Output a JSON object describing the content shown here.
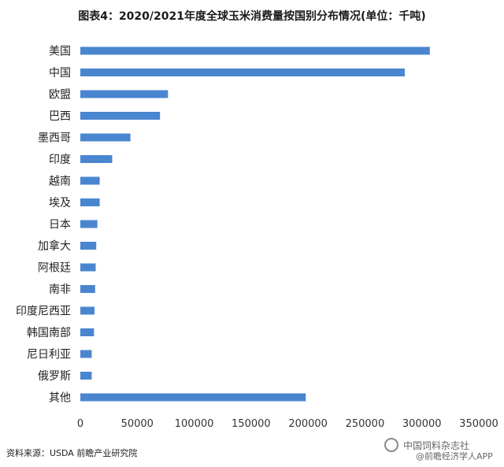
{
  "chart_data": {
    "type": "bar",
    "orientation": "horizontal",
    "title": "图表4：2020/2021年度全球玉米消费量按国别分布情况(单位：千吨)",
    "categories": [
      "美国",
      "中国",
      "欧盟",
      "巴西",
      "墨西哥",
      "印度",
      "越南",
      "埃及",
      "日本",
      "加拿大",
      "阿根廷",
      "南非",
      "印度尼西亚",
      "韩国南部",
      "尼日利亚",
      "俄罗斯",
      "其他"
    ],
    "values": [
      307000,
      285000,
      77000,
      70000,
      44000,
      28000,
      17000,
      17000,
      15000,
      14000,
      13500,
      13000,
      12500,
      12000,
      10000,
      10000,
      198000
    ],
    "xlim": [
      0,
      350000
    ],
    "xticks": [
      0,
      50000,
      100000,
      150000,
      200000,
      250000,
      300000,
      350000
    ],
    "bar_color": "#4a86d0",
    "grid": false,
    "legend": "none"
  },
  "source": "资料来源：USDA 前瞻产业研究院",
  "watermark": {
    "line1": "中国饲料杂志社",
    "line2": "@前瞻经济学人APP"
  }
}
